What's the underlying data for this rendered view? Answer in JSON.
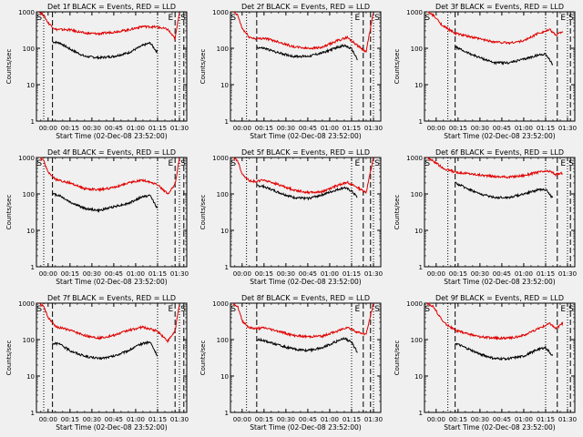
{
  "figure": {
    "background": "#f0f0f0",
    "event_color": "#000000",
    "lld_color": "#e00000",
    "ylabel": "Counts/sec",
    "xlabel": "Start Time (02-Dec-08 23:52:00)",
    "x_tick_labels": [
      "00:00",
      "00:15",
      "00:30",
      "00:45",
      "01:00",
      "01:15",
      "01:30"
    ],
    "y_tick_labels": [
      "1",
      "10",
      "100",
      "1000"
    ]
  },
  "chart_data": [
    {
      "type": "line",
      "title": "Det 1f BLACK = Events, RED = LLD",
      "xlabel": "Start Time (02-Dec-08 23:52:00)",
      "ylabel": "Counts/sec",
      "x_ticks_min": [
        0,
        15,
        30,
        45,
        60,
        75,
        90
      ],
      "xlim_min": [
        -8,
        95
      ],
      "ylim": [
        1,
        1000
      ],
      "y_scale": "log",
      "markers": {
        "S_min": -6,
        "E_min": 84,
        "dotted_min": [
          -3,
          75,
          90
        ],
        "dashed_min": [
          3,
          87,
          93
        ]
      },
      "series": [
        {
          "name": "Events",
          "color": "#000000",
          "x_min": [
            3,
            8,
            15,
            25,
            35,
            45,
            55,
            65,
            70,
            75
          ],
          "y": [
            150,
            140,
            95,
            60,
            55,
            60,
            75,
            120,
            140,
            75
          ]
        },
        {
          "name": "LLD",
          "color": "#e00000",
          "x_min": [
            -6,
            -3,
            0,
            5,
            15,
            25,
            35,
            45,
            55,
            65,
            75,
            82,
            87,
            90
          ],
          "y": [
            1000,
            800,
            500,
            330,
            320,
            260,
            250,
            280,
            320,
            400,
            380,
            330,
            180,
            1000
          ]
        }
      ]
    },
    {
      "type": "line",
      "title": "Det 2f BLACK = Events, RED = LLD",
      "xlabel": "Start Time (02-Dec-08 23:52:00)",
      "ylabel": "Counts/sec",
      "x_ticks_min": [
        0,
        15,
        30,
        45,
        60,
        75,
        90
      ],
      "xlim_min": [
        -8,
        95
      ],
      "ylim": [
        1,
        1000
      ],
      "y_scale": "log",
      "markers": {
        "S_min": -6,
        "E_min": 79,
        "dotted_min": [
          3,
          75,
          90
        ],
        "dashed_min": [
          10,
          83,
          88
        ]
      },
      "series": [
        {
          "name": "Events",
          "color": "#000000",
          "x_min": [
            10,
            15,
            25,
            35,
            45,
            55,
            65,
            70,
            75,
            79
          ],
          "y": [
            105,
            100,
            75,
            60,
            60,
            75,
            105,
            120,
            95,
            50
          ]
        },
        {
          "name": "LLD",
          "color": "#e00000",
          "x_min": [
            -6,
            -3,
            0,
            5,
            10,
            15,
            25,
            35,
            45,
            55,
            65,
            72,
            79,
            85,
            90
          ],
          "y": [
            1000,
            800,
            350,
            200,
            180,
            190,
            150,
            110,
            100,
            105,
            160,
            200,
            120,
            80,
            1000
          ]
        }
      ]
    },
    {
      "type": "line",
      "title": "Det 3f BLACK = Events, RED = LLD",
      "xlabel": "Start Time (02-Dec-08 23:52:00)",
      "ylabel": "Counts/sec",
      "x_ticks_min": [
        0,
        15,
        30,
        45,
        60,
        75,
        90
      ],
      "xlim_min": [
        -8,
        95
      ],
      "ylim": [
        1,
        1000
      ],
      "y_scale": "log",
      "markers": {
        "S_min": -6,
        "E_min": 87,
        "dotted_min": [
          8,
          75,
          90
        ],
        "dashed_min": [
          13,
          83,
          92
        ]
      },
      "series": [
        {
          "name": "Events",
          "color": "#000000",
          "x_min": [
            13,
            20,
            30,
            40,
            50,
            60,
            70,
            75,
            80
          ],
          "y": [
            110,
            80,
            55,
            40,
            40,
            50,
            65,
            70,
            35
          ]
        },
        {
          "name": "LLD",
          "color": "#e00000",
          "x_min": [
            -6,
            -2,
            5,
            13,
            20,
            30,
            40,
            50,
            60,
            70,
            78,
            82,
            87
          ],
          "y": [
            1000,
            800,
            400,
            260,
            220,
            180,
            150,
            140,
            160,
            260,
            320,
            230,
            300
          ]
        }
      ]
    },
    {
      "type": "line",
      "title": "Det 4f BLACK = Events, RED = LLD",
      "xlabel": "Start Time (02-Dec-08 23:52:00)",
      "ylabel": "Counts/sec",
      "x_ticks_min": [
        0,
        15,
        30,
        45,
        60,
        75,
        90
      ],
      "xlim_min": [
        -8,
        95
      ],
      "ylim": [
        1,
        1000
      ],
      "y_scale": "log",
      "markers": {
        "S_min": -6,
        "E_min": 84,
        "dotted_min": [
          -3,
          75,
          90
        ],
        "dashed_min": [
          3,
          87,
          93
        ]
      },
      "series": [
        {
          "name": "Events",
          "color": "#000000",
          "x_min": [
            3,
            8,
            15,
            25,
            35,
            45,
            55,
            65,
            70,
            75
          ],
          "y": [
            100,
            90,
            60,
            40,
            35,
            45,
            55,
            85,
            90,
            40
          ]
        },
        {
          "name": "LLD",
          "color": "#e00000",
          "x_min": [
            -6,
            -3,
            0,
            5,
            15,
            25,
            35,
            45,
            55,
            65,
            75,
            82,
            87,
            90
          ],
          "y": [
            1000,
            800,
            400,
            250,
            200,
            140,
            130,
            150,
            200,
            240,
            180,
            100,
            180,
            1000
          ]
        }
      ]
    },
    {
      "type": "line",
      "title": "Det 5f BLACK = Events, RED = LLD",
      "xlabel": "Start Time (02-Dec-08 23:52:00)",
      "ylabel": "Counts/sec",
      "x_ticks_min": [
        0,
        15,
        30,
        45,
        60,
        75,
        90
      ],
      "xlim_min": [
        -8,
        95
      ],
      "ylim": [
        1,
        1000
      ],
      "y_scale": "log",
      "markers": {
        "S_min": -6,
        "E_min": 79,
        "dotted_min": [
          3,
          75,
          90
        ],
        "dashed_min": [
          10,
          83,
          88
        ]
      },
      "series": [
        {
          "name": "Events",
          "color": "#000000",
          "x_min": [
            10,
            15,
            25,
            35,
            45,
            55,
            65,
            70,
            75,
            79
          ],
          "y": [
            170,
            160,
            110,
            80,
            75,
            95,
            130,
            150,
            120,
            80
          ]
        },
        {
          "name": "LLD",
          "color": "#e00000",
          "x_min": [
            -6,
            -3,
            0,
            5,
            10,
            15,
            25,
            35,
            45,
            55,
            65,
            72,
            79,
            85,
            90
          ],
          "y": [
            1000,
            800,
            350,
            230,
            220,
            240,
            180,
            130,
            110,
            115,
            170,
            210,
            150,
            110,
            1000
          ]
        }
      ]
    },
    {
      "type": "line",
      "title": "Det 6f BLACK = Events, RED = LLD",
      "xlabel": "Start Time (02-Dec-08 23:52:00)",
      "ylabel": "Counts/sec",
      "x_ticks_min": [
        0,
        15,
        30,
        45,
        60,
        75,
        90
      ],
      "xlim_min": [
        -8,
        95
      ],
      "ylim": [
        1,
        1000
      ],
      "y_scale": "log",
      "markers": {
        "S_min": -6,
        "E_min": 87,
        "dotted_min": [
          8,
          75,
          90
        ],
        "dashed_min": [
          13,
          83,
          92
        ]
      },
      "series": [
        {
          "name": "Events",
          "color": "#000000",
          "x_min": [
            13,
            20,
            30,
            40,
            50,
            60,
            70,
            75,
            80
          ],
          "y": [
            200,
            150,
            100,
            80,
            80,
            100,
            130,
            135,
            75
          ]
        },
        {
          "name": "LLD",
          "color": "#e00000",
          "x_min": [
            -6,
            -2,
            5,
            13,
            20,
            30,
            40,
            50,
            60,
            70,
            78,
            82,
            87
          ],
          "y": [
            1000,
            800,
            500,
            400,
            370,
            330,
            300,
            290,
            320,
            400,
            420,
            340,
            380
          ]
        }
      ]
    },
    {
      "type": "line",
      "title": "Det 7f BLACK = Events, RED = LLD",
      "xlabel": "Start Time (02-Dec-08 23:52:00)",
      "ylabel": "Counts/sec",
      "x_ticks_min": [
        0,
        15,
        30,
        45,
        60,
        75,
        90
      ],
      "xlim_min": [
        -8,
        95
      ],
      "ylim": [
        1,
        1000
      ],
      "y_scale": "log",
      "markers": {
        "S_min": -6,
        "E_min": 84,
        "dotted_min": [
          -3,
          75,
          90
        ],
        "dashed_min": [
          3,
          87,
          93
        ]
      },
      "series": [
        {
          "name": "Events",
          "color": "#000000",
          "x_min": [
            3,
            8,
            15,
            25,
            35,
            45,
            55,
            65,
            70,
            75
          ],
          "y": [
            80,
            75,
            50,
            35,
            30,
            35,
            50,
            80,
            85,
            35
          ]
        },
        {
          "name": "LLD",
          "color": "#e00000",
          "x_min": [
            -6,
            -3,
            0,
            5,
            15,
            25,
            35,
            45,
            55,
            65,
            75,
            82,
            87,
            90
          ],
          "y": [
            1000,
            800,
            400,
            230,
            180,
            130,
            110,
            130,
            180,
            220,
            170,
            90,
            170,
            1000
          ]
        }
      ]
    },
    {
      "type": "line",
      "title": "Det 8f BLACK = Events, RED = LLD",
      "xlabel": "Start Time (02-Dec-08 23:52:00)",
      "ylabel": "Counts/sec",
      "x_ticks_min": [
        0,
        15,
        30,
        45,
        60,
        75,
        90
      ],
      "xlim_min": [
        -8,
        95
      ],
      "ylim": [
        1,
        1000
      ],
      "y_scale": "log",
      "markers": {
        "S_min": -6,
        "E_min": 79,
        "dotted_min": [
          3,
          75,
          90
        ],
        "dashed_min": [
          10,
          83,
          88
        ]
      },
      "series": [
        {
          "name": "Events",
          "color": "#000000",
          "x_min": [
            10,
            15,
            25,
            35,
            45,
            55,
            65,
            70,
            75,
            79
          ],
          "y": [
            100,
            95,
            70,
            55,
            50,
            60,
            90,
            110,
            85,
            45
          ]
        },
        {
          "name": "LLD",
          "color": "#e00000",
          "x_min": [
            -6,
            -3,
            0,
            5,
            10,
            15,
            25,
            35,
            45,
            55,
            65,
            72,
            79,
            85,
            90
          ],
          "y": [
            1000,
            800,
            330,
            210,
            200,
            210,
            170,
            130,
            120,
            125,
            170,
            220,
            160,
            140,
            1000
          ]
        }
      ]
    },
    {
      "type": "line",
      "title": "Det 9f BLACK = Events, RED = LLD",
      "xlabel": "Start Time (02-Dec-08 23:52:00)",
      "ylabel": "Counts/sec",
      "x_ticks_min": [
        0,
        15,
        30,
        45,
        60,
        75,
        90
      ],
      "xlim_min": [
        -8,
        95
      ],
      "ylim": [
        1,
        1000
      ],
      "y_scale": "log",
      "markers": {
        "S_min": -6,
        "E_min": 87,
        "dotted_min": [
          8,
          75,
          90
        ],
        "dashed_min": [
          13,
          83,
          92
        ]
      },
      "series": [
        {
          "name": "Events",
          "color": "#000000",
          "x_min": [
            13,
            20,
            30,
            40,
            50,
            60,
            70,
            75,
            80
          ],
          "y": [
            80,
            60,
            40,
            30,
            30,
            35,
            55,
            60,
            35
          ]
        },
        {
          "name": "LLD",
          "color": "#e00000",
          "x_min": [
            -6,
            -2,
            5,
            13,
            20,
            30,
            40,
            50,
            60,
            70,
            78,
            82,
            87
          ],
          "y": [
            1000,
            800,
            300,
            180,
            150,
            120,
            110,
            110,
            130,
            200,
            280,
            200,
            290
          ]
        }
      ]
    }
  ]
}
